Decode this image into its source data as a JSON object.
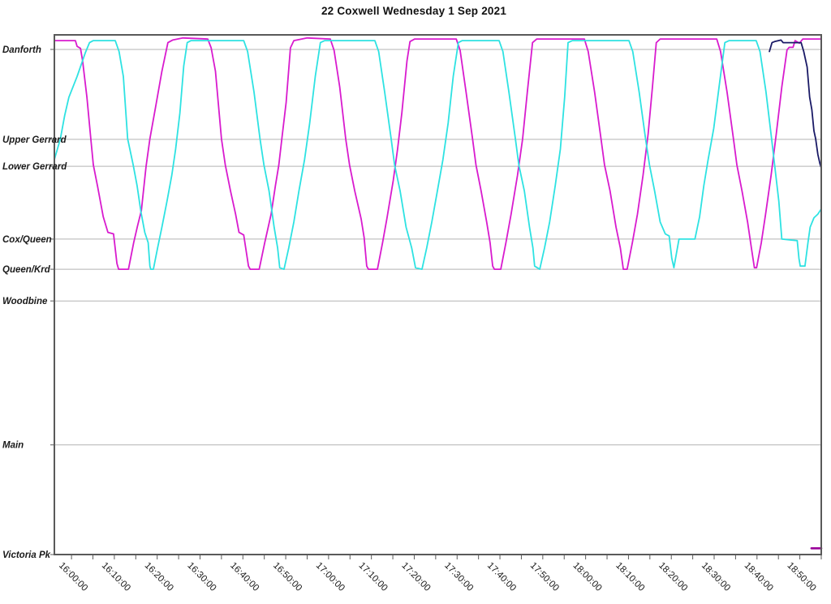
{
  "title": "22 Coxwell Wednesday 1 Sep 2021",
  "colors": {
    "grid": "#b3b3b3",
    "axis": "#595959",
    "text": "#1a1a1a",
    "magenta": "#d81bce",
    "cyan": "#2ee2e2",
    "navy": "#1a1a66",
    "dark_magenta": "#990099"
  },
  "chart_data": {
    "type": "line",
    "title": "22 Coxwell Wednesday 1 Sep 2021",
    "xlabel": "",
    "ylabel": "",
    "legend": "none",
    "grid": "horizontal-only",
    "x_axis": {
      "unit": "minutes after 16:00:00",
      "min": -4,
      "max": 175,
      "minor_tick_step": 5,
      "major_ticks": [
        {
          "minutes": 0,
          "label": "16:00:00"
        },
        {
          "minutes": 10,
          "label": "16:10:00"
        },
        {
          "minutes": 20,
          "label": "16:20:00"
        },
        {
          "minutes": 30,
          "label": "16:30:00"
        },
        {
          "minutes": 40,
          "label": "16:40:00"
        },
        {
          "minutes": 50,
          "label": "16:50:00"
        },
        {
          "minutes": 60,
          "label": "17:00:00"
        },
        {
          "minutes": 70,
          "label": "17:10:00"
        },
        {
          "minutes": 80,
          "label": "17:20:00"
        },
        {
          "minutes": 90,
          "label": "17:30:00"
        },
        {
          "minutes": 100,
          "label": "17:40:00"
        },
        {
          "minutes": 110,
          "label": "17:50:00"
        },
        {
          "minutes": 120,
          "label": "18:00:00"
        },
        {
          "minutes": 130,
          "label": "18:10:00"
        },
        {
          "minutes": 140,
          "label": "18:20:00"
        },
        {
          "minutes": 150,
          "label": "18:30:00"
        },
        {
          "minutes": 160,
          "label": "18:40:00"
        },
        {
          "minutes": 170,
          "label": "18:50:00"
        }
      ]
    },
    "y_axis": {
      "unit": "route position (0 = Victoria Pk, 1 = Danforth terminal)",
      "stations": [
        {
          "label": "Danforth",
          "pos": 0.972
        },
        {
          "label": "Upper Gerrard",
          "pos": 0.799
        },
        {
          "label": "Lower Gerrard",
          "pos": 0.747
        },
        {
          "label": "Cox/Queen",
          "pos": 0.607
        },
        {
          "label": "Queen/Krd",
          "pos": 0.549
        },
        {
          "label": "Woodbine",
          "pos": 0.488
        },
        {
          "label": "Main",
          "pos": 0.211
        },
        {
          "label": "Victoria Pk",
          "pos": 0.0
        }
      ]
    },
    "series": [
      {
        "name": "vehicle-magenta",
        "color": "#d81bce",
        "points": [
          [
            -4,
            0.989
          ],
          [
            0.9,
            0.989
          ],
          [
            1.3,
            0.978
          ],
          [
            2.1,
            0.974
          ],
          [
            2.6,
            0.95
          ],
          [
            3.6,
            0.88
          ],
          [
            4.5,
            0.8
          ],
          [
            5.1,
            0.75
          ],
          [
            6.1,
            0.708
          ],
          [
            7.4,
            0.65
          ],
          [
            8.5,
            0.62
          ],
          [
            9.8,
            0.617
          ],
          [
            10.6,
            0.56
          ],
          [
            11,
            0.549
          ],
          [
            13.3,
            0.549
          ],
          [
            14.5,
            0.6
          ],
          [
            15.4,
            0.632
          ],
          [
            16.3,
            0.662
          ],
          [
            17.4,
            0.747
          ],
          [
            18.3,
            0.8
          ],
          [
            19.6,
            0.86
          ],
          [
            21.1,
            0.93
          ],
          [
            22.5,
            0.985
          ],
          [
            23.6,
            0.99
          ],
          [
            26,
            0.994
          ],
          [
            31.8,
            0.992
          ],
          [
            32.6,
            0.975
          ],
          [
            33.6,
            0.93
          ],
          [
            35,
            0.8
          ],
          [
            35.9,
            0.75
          ],
          [
            37.1,
            0.7
          ],
          [
            38.3,
            0.655
          ],
          [
            39.1,
            0.62
          ],
          [
            40.2,
            0.615
          ],
          [
            41.3,
            0.555
          ],
          [
            41.7,
            0.549
          ],
          [
            43.8,
            0.549
          ],
          [
            45.1,
            0.6
          ],
          [
            46.6,
            0.655
          ],
          [
            47.6,
            0.71
          ],
          [
            48.4,
            0.75
          ],
          [
            49.1,
            0.8
          ],
          [
            50.1,
            0.87
          ],
          [
            51.1,
            0.975
          ],
          [
            51.9,
            0.989
          ],
          [
            55,
            0.994
          ],
          [
            60.4,
            0.992
          ],
          [
            61.3,
            0.97
          ],
          [
            62.6,
            0.9
          ],
          [
            64,
            0.8
          ],
          [
            64.9,
            0.75
          ],
          [
            66.1,
            0.7
          ],
          [
            67.6,
            0.646
          ],
          [
            68.3,
            0.61
          ],
          [
            68.9,
            0.555
          ],
          [
            69.3,
            0.549
          ],
          [
            71.4,
            0.549
          ],
          [
            72.6,
            0.6
          ],
          [
            73.6,
            0.646
          ],
          [
            75.1,
            0.72
          ],
          [
            76.1,
            0.78
          ],
          [
            77.1,
            0.85
          ],
          [
            78.3,
            0.95
          ],
          [
            79,
            0.987
          ],
          [
            80.1,
            0.992
          ],
          [
            89.8,
            0.992
          ],
          [
            90.7,
            0.97
          ],
          [
            92.1,
            0.89
          ],
          [
            93.6,
            0.8
          ],
          [
            94.4,
            0.75
          ],
          [
            95.6,
            0.7
          ],
          [
            96.9,
            0.64
          ],
          [
            97.7,
            0.6
          ],
          [
            98.3,
            0.555
          ],
          [
            98.7,
            0.549
          ],
          [
            100.2,
            0.549
          ],
          [
            101.4,
            0.6
          ],
          [
            102.6,
            0.655
          ],
          [
            104.1,
            0.73
          ],
          [
            105.3,
            0.8
          ],
          [
            106.4,
            0.89
          ],
          [
            107.6,
            0.985
          ],
          [
            108.6,
            0.992
          ],
          [
            119.7,
            0.992
          ],
          [
            120.6,
            0.968
          ],
          [
            122.1,
            0.89
          ],
          [
            123.6,
            0.8
          ],
          [
            124.4,
            0.75
          ],
          [
            125.7,
            0.7
          ],
          [
            127.1,
            0.63
          ],
          [
            128.1,
            0.59
          ],
          [
            128.8,
            0.549
          ],
          [
            129.7,
            0.549
          ],
          [
            130.9,
            0.6
          ],
          [
            132.1,
            0.655
          ],
          [
            133.4,
            0.73
          ],
          [
            134.6,
            0.81
          ],
          [
            135.6,
            0.9
          ],
          [
            136.5,
            0.985
          ],
          [
            137.4,
            0.992
          ],
          [
            150.6,
            0.992
          ],
          [
            151.5,
            0.968
          ],
          [
            153,
            0.89
          ],
          [
            154.5,
            0.8
          ],
          [
            155.3,
            0.75
          ],
          [
            156.5,
            0.7
          ],
          [
            157.8,
            0.64
          ],
          [
            158.7,
            0.59
          ],
          [
            159.4,
            0.552
          ],
          [
            159.9,
            0.552
          ],
          [
            161,
            0.6
          ],
          [
            162,
            0.655
          ],
          [
            163.3,
            0.73
          ],
          [
            164.5,
            0.81
          ],
          [
            165.8,
            0.9
          ],
          [
            167,
            0.971
          ],
          [
            167.5,
            0.976
          ],
          [
            168.4,
            0.976
          ],
          [
            168.9,
            0.989
          ],
          [
            169.9,
            0.984
          ],
          [
            170.7,
            0.992
          ],
          [
            175,
            0.992
          ]
        ]
      },
      {
        "name": "vehicle-cyan",
        "color": "#2ee2e2",
        "points": [
          [
            -4,
            0.76
          ],
          [
            -2.6,
            0.8
          ],
          [
            -1.6,
            0.845
          ],
          [
            -0.6,
            0.88
          ],
          [
            1.3,
            0.92
          ],
          [
            3.2,
            0.965
          ],
          [
            4.2,
            0.985
          ],
          [
            5.1,
            0.989
          ],
          [
            10.2,
            0.989
          ],
          [
            11.1,
            0.968
          ],
          [
            12.1,
            0.92
          ],
          [
            13.1,
            0.8
          ],
          [
            14.4,
            0.75
          ],
          [
            15.3,
            0.71
          ],
          [
            16.2,
            0.66
          ],
          [
            17.1,
            0.62
          ],
          [
            17.9,
            0.6
          ],
          [
            18.3,
            0.555
          ],
          [
            18.5,
            0.549
          ],
          [
            19.1,
            0.549
          ],
          [
            20.1,
            0.59
          ],
          [
            21.1,
            0.63
          ],
          [
            22.3,
            0.68
          ],
          [
            23.4,
            0.73
          ],
          [
            24.3,
            0.78
          ],
          [
            25.3,
            0.85
          ],
          [
            26.2,
            0.94
          ],
          [
            27,
            0.985
          ],
          [
            27.9,
            0.989
          ],
          [
            40.2,
            0.989
          ],
          [
            41.1,
            0.968
          ],
          [
            42.6,
            0.89
          ],
          [
            44,
            0.8
          ],
          [
            44.9,
            0.75
          ],
          [
            46.1,
            0.7
          ],
          [
            47.3,
            0.63
          ],
          [
            48.1,
            0.59
          ],
          [
            48.6,
            0.552
          ],
          [
            49.6,
            0.549
          ],
          [
            50.7,
            0.59
          ],
          [
            51.9,
            0.64
          ],
          [
            53.1,
            0.7
          ],
          [
            54.4,
            0.76
          ],
          [
            55.6,
            0.83
          ],
          [
            56.9,
            0.92
          ],
          [
            58.1,
            0.985
          ],
          [
            59.1,
            0.989
          ],
          [
            70.8,
            0.989
          ],
          [
            71.7,
            0.968
          ],
          [
            73.1,
            0.89
          ],
          [
            74.6,
            0.8
          ],
          [
            75.4,
            0.75
          ],
          [
            76.7,
            0.7
          ],
          [
            78.1,
            0.63
          ],
          [
            79.4,
            0.59
          ],
          [
            80.3,
            0.552
          ],
          [
            81.8,
            0.549
          ],
          [
            82.9,
            0.59
          ],
          [
            84.1,
            0.64
          ],
          [
            85.4,
            0.7
          ],
          [
            86.7,
            0.76
          ],
          [
            87.9,
            0.83
          ],
          [
            89.1,
            0.92
          ],
          [
            90.3,
            0.985
          ],
          [
            91.2,
            0.989
          ],
          [
            99.8,
            0.989
          ],
          [
            100.7,
            0.968
          ],
          [
            102.1,
            0.89
          ],
          [
            103.6,
            0.8
          ],
          [
            104.4,
            0.75
          ],
          [
            105.7,
            0.7
          ],
          [
            106.9,
            0.63
          ],
          [
            107.7,
            0.59
          ],
          [
            108.1,
            0.555
          ],
          [
            109.3,
            0.549
          ],
          [
            110.4,
            0.59
          ],
          [
            111.6,
            0.64
          ],
          [
            112.9,
            0.71
          ],
          [
            114.1,
            0.78
          ],
          [
            115.1,
            0.88
          ],
          [
            115.9,
            0.985
          ],
          [
            116.9,
            0.989
          ],
          [
            130.1,
            0.989
          ],
          [
            131,
            0.968
          ],
          [
            132.5,
            0.89
          ],
          [
            134,
            0.8
          ],
          [
            134.9,
            0.75
          ],
          [
            136.1,
            0.7
          ],
          [
            137.4,
            0.64
          ],
          [
            138.6,
            0.617
          ],
          [
            139.5,
            0.613
          ],
          [
            140.1,
            0.57
          ],
          [
            140.6,
            0.552
          ],
          [
            141.2,
            0.58
          ],
          [
            141.8,
            0.607
          ],
          [
            145.5,
            0.607
          ],
          [
            146.6,
            0.65
          ],
          [
            147.6,
            0.71
          ],
          [
            148.6,
            0.76
          ],
          [
            149.9,
            0.82
          ],
          [
            151.3,
            0.91
          ],
          [
            152.5,
            0.985
          ],
          [
            153.5,
            0.989
          ],
          [
            159.8,
            0.989
          ],
          [
            160.7,
            0.968
          ],
          [
            162.1,
            0.89
          ],
          [
            163.4,
            0.8
          ],
          [
            164.1,
            0.75
          ],
          [
            165.1,
            0.68
          ],
          [
            165.8,
            0.607
          ],
          [
            169.4,
            0.604
          ],
          [
            169.8,
            0.57
          ],
          [
            170.1,
            0.555
          ],
          [
            171.2,
            0.555
          ],
          [
            171.9,
            0.6
          ],
          [
            172.4,
            0.63
          ],
          [
            173.3,
            0.648
          ],
          [
            174.2,
            0.655
          ],
          [
            175,
            0.665
          ]
        ]
      },
      {
        "name": "vehicle-navy",
        "color": "#1a1a66",
        "points": [
          [
            162.9,
            0.968
          ],
          [
            163.5,
            0.985
          ],
          [
            164.1,
            0.987
          ],
          [
            165.6,
            0.99
          ],
          [
            166.1,
            0.985
          ],
          [
            170.3,
            0.985
          ],
          [
            170.9,
            0.968
          ],
          [
            171.7,
            0.938
          ],
          [
            172.3,
            0.88
          ],
          [
            172.8,
            0.856
          ],
          [
            173.3,
            0.815
          ],
          [
            173.7,
            0.8
          ],
          [
            174.2,
            0.77
          ],
          [
            174.7,
            0.752
          ],
          [
            175,
            0.744
          ]
        ]
      },
      {
        "name": "vehicle-dark-magenta",
        "color": "#990099",
        "points": [
          [
            172.7,
            0.012
          ],
          [
            175,
            0.012
          ]
        ]
      }
    ]
  }
}
